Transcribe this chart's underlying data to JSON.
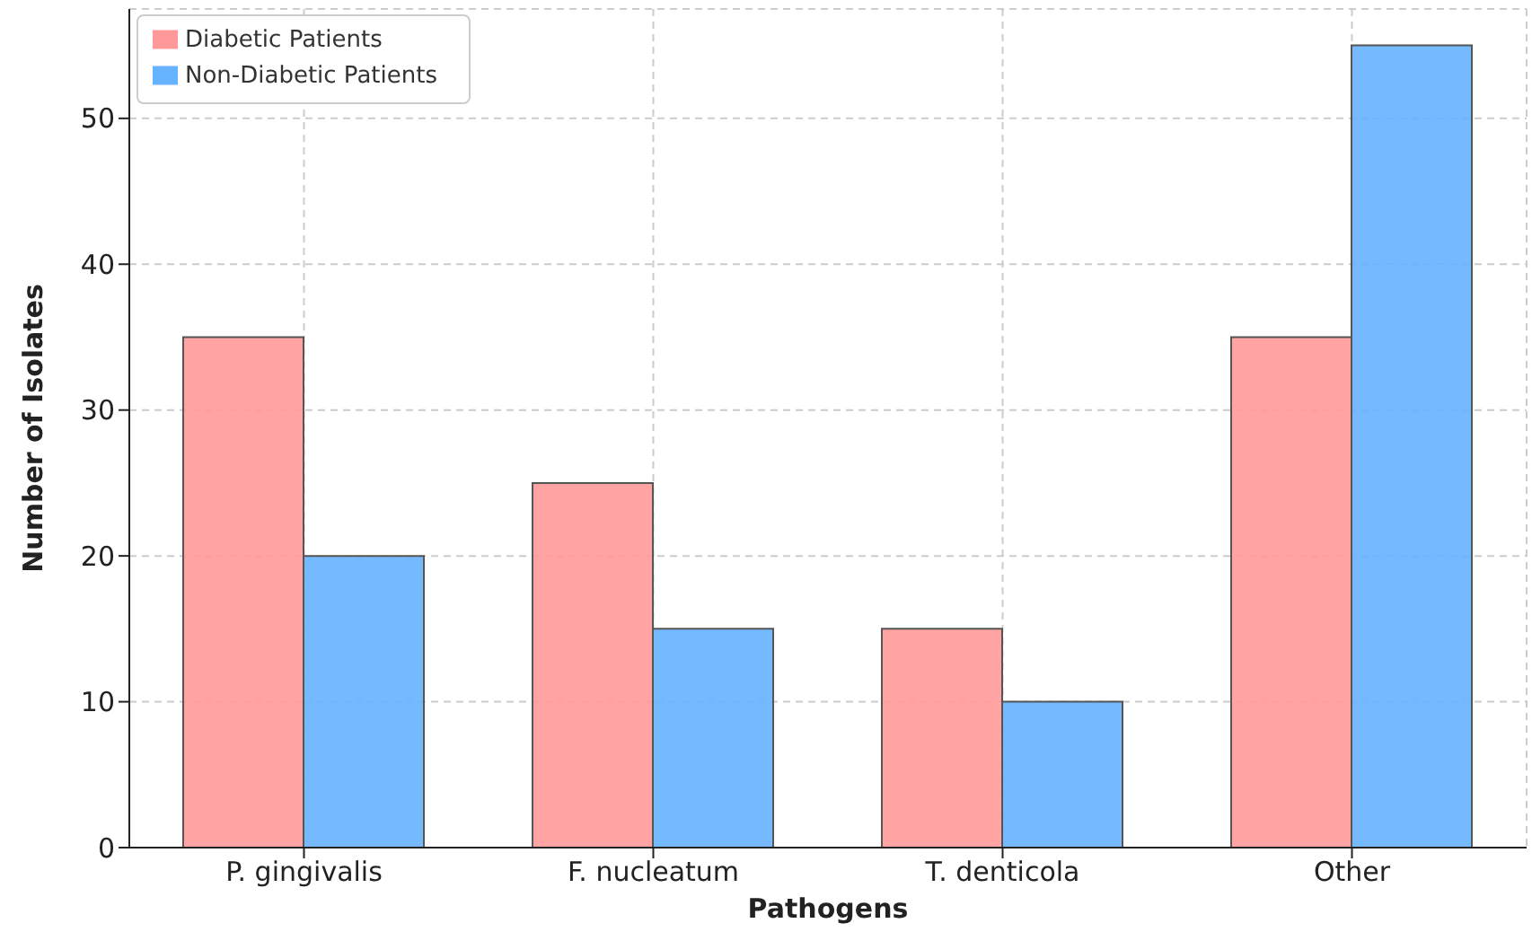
{
  "chart_data": {
    "type": "bar",
    "xlabel": "Pathogens",
    "ylabel": "Number of Isolates",
    "categories": [
      "P. gingivalis",
      "F. nucleatum",
      "T. denticola",
      "Other"
    ],
    "series": [
      {
        "name": "Diabetic Patients",
        "color": "#ff9999",
        "values": [
          35,
          25,
          15,
          35
        ]
      },
      {
        "name": "Non-Diabetic Patients",
        "color": "#66b3ff",
        "values": [
          20,
          15,
          10,
          55
        ]
      }
    ],
    "ylim": [
      0,
      57.5
    ],
    "yticks": [
      0,
      10,
      20,
      30,
      40,
      50
    ],
    "grid": true,
    "legend": "top left"
  }
}
